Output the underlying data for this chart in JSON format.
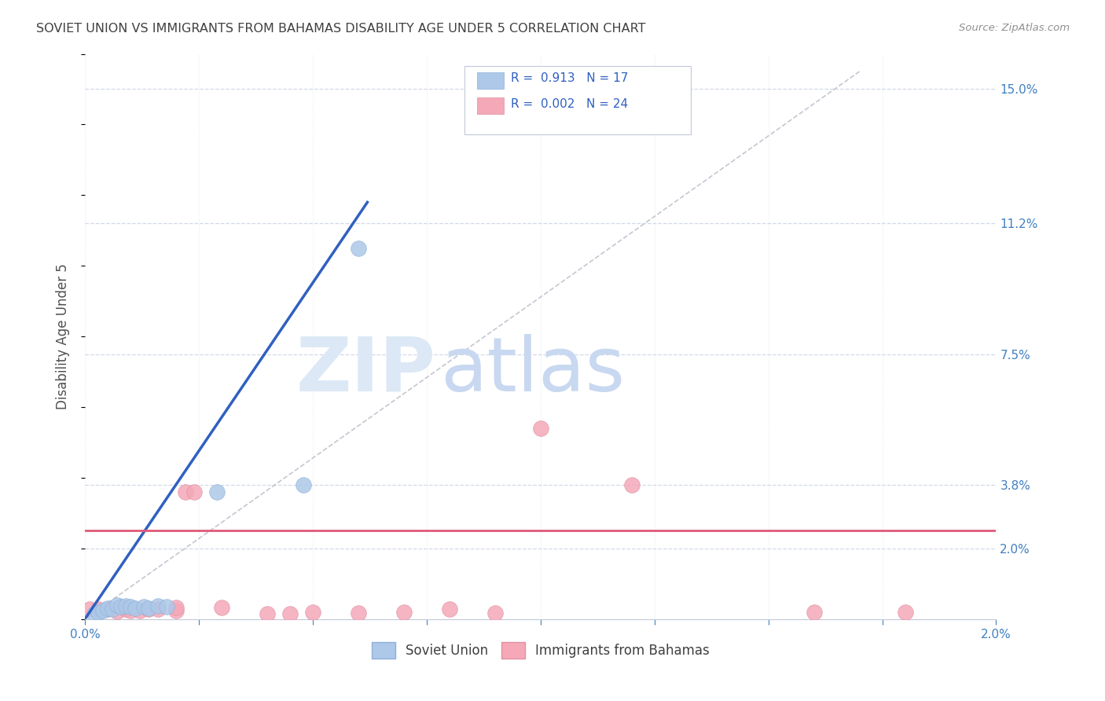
{
  "title": "SOVIET UNION VS IMMIGRANTS FROM BAHAMAS DISABILITY AGE UNDER 5 CORRELATION CHART",
  "source": "Source: ZipAtlas.com",
  "ylabel": "Disability Age Under 5",
  "ytick_labels": [
    "2.0%",
    "3.8%",
    "7.5%",
    "11.2%",
    "15.0%"
  ],
  "ytick_values": [
    2.0,
    3.8,
    7.5,
    11.2,
    15.0
  ],
  "xlim": [
    0.0,
    2.0
  ],
  "ylim": [
    0.0,
    16.0
  ],
  "soviet_union_points": [
    [
      0.02,
      0.15
    ],
    [
      0.03,
      0.2
    ],
    [
      0.04,
      0.25
    ],
    [
      0.05,
      0.3
    ],
    [
      0.06,
      0.28
    ],
    [
      0.07,
      0.4
    ],
    [
      0.08,
      0.35
    ],
    [
      0.09,
      0.38
    ],
    [
      0.1,
      0.35
    ],
    [
      0.11,
      0.3
    ],
    [
      0.13,
      0.36
    ],
    [
      0.14,
      0.3
    ],
    [
      0.16,
      0.38
    ],
    [
      0.18,
      0.35
    ],
    [
      0.29,
      3.6
    ],
    [
      0.48,
      3.8
    ],
    [
      0.6,
      10.5
    ]
  ],
  "bahamas_points": [
    [
      0.01,
      0.28
    ],
    [
      0.03,
      0.28
    ],
    [
      0.05,
      0.28
    ],
    [
      0.07,
      0.22
    ],
    [
      0.09,
      0.28
    ],
    [
      0.1,
      0.25
    ],
    [
      0.12,
      0.25
    ],
    [
      0.14,
      0.28
    ],
    [
      0.16,
      0.28
    ],
    [
      0.2,
      0.25
    ],
    [
      0.2,
      0.32
    ],
    [
      0.22,
      3.6
    ],
    [
      0.24,
      3.6
    ],
    [
      0.3,
      0.32
    ],
    [
      0.4,
      0.15
    ],
    [
      0.45,
      0.15
    ],
    [
      0.5,
      0.2
    ],
    [
      0.6,
      0.18
    ],
    [
      0.7,
      0.2
    ],
    [
      0.8,
      0.28
    ],
    [
      0.9,
      0.18
    ],
    [
      1.0,
      5.4
    ],
    [
      1.2,
      3.8
    ],
    [
      1.6,
      0.2
    ],
    [
      1.8,
      0.2
    ]
  ],
  "blue_line_x": [
    0.0,
    0.62
  ],
  "blue_line_y": [
    0.0,
    11.8
  ],
  "pink_line_y": 2.5,
  "diag_line_x": [
    0.0,
    1.7
  ],
  "diag_line_y": [
    0.0,
    15.5
  ],
  "blue_line_color": "#3060c0",
  "pink_line_color": "#e05878",
  "diag_line_color": "#b8b8c8",
  "grid_color": "#d0d8e8",
  "background_color": "#ffffff",
  "title_color": "#404040",
  "axis_label_color": "#505050",
  "tick_color": "#4080c0",
  "watermark_zip": "ZIP",
  "watermark_atlas": "atlas",
  "watermark_color": "#dce8f5"
}
